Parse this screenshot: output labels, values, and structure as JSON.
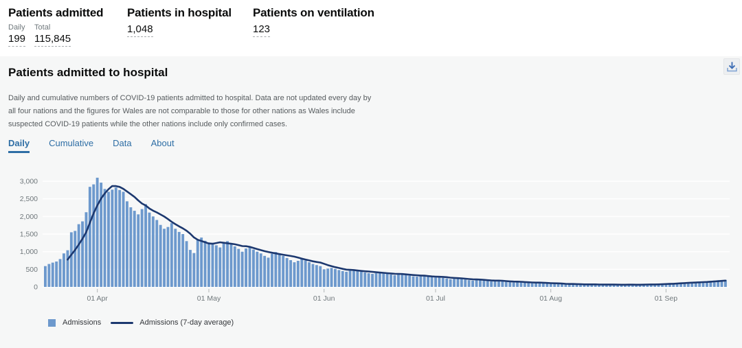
{
  "header": {
    "stats": [
      {
        "title": "Patients admitted",
        "metrics": [
          {
            "label": "Daily",
            "value": "199"
          },
          {
            "label": "Total",
            "value": "115,845"
          }
        ]
      },
      {
        "title": "Patients in hospital",
        "value": "1,048"
      },
      {
        "title": "Patients on ventilation",
        "value": "123"
      }
    ]
  },
  "card": {
    "title": "Patients admitted to hospital",
    "description_lines": [
      "Daily and cumulative numbers of COVID-19 patients admitted to hospital. Data are not updated every day by",
      "all four nations and the figures for Wales are not comparable to those for other nations as Wales include",
      "suspected COVID-19 patients while the other nations include only confirmed cases."
    ],
    "tabs": [
      {
        "label": "Daily",
        "active": true
      },
      {
        "label": "Cumulative",
        "active": false
      },
      {
        "label": "Data",
        "active": false
      },
      {
        "label": "About",
        "active": false
      }
    ]
  },
  "legend": {
    "bar_label": "Admissions",
    "line_label": "Admissions (7-day average)"
  },
  "colors": {
    "bar": "#6d99cd",
    "line": "#1c386f",
    "tab_blue": "#2e6ea5",
    "axis_text": "#6f777b",
    "gridline": "#ffffff",
    "card_bg": "#f6f7f7"
  },
  "chart_data": {
    "type": "bar",
    "title": "Patients admitted to hospital — Daily",
    "xlabel": "",
    "ylabel": "",
    "ylim": [
      0,
      3200
    ],
    "grid": true,
    "legend_position": "bottom-left",
    "y_ticks": [
      {
        "value": 0,
        "label": "0"
      },
      {
        "value": 500,
        "label": "500"
      },
      {
        "value": 1000,
        "label": "1,000"
      },
      {
        "value": 1500,
        "label": "1,500"
      },
      {
        "value": 2000,
        "label": "2,000"
      },
      {
        "value": 2500,
        "label": "2,500"
      },
      {
        "value": 3000,
        "label": "3,000"
      }
    ],
    "x_ticks": [
      {
        "label": "01 Apr",
        "day_index": 14
      },
      {
        "label": "01 May",
        "day_index": 44
      },
      {
        "label": "01 Jun",
        "day_index": 75
      },
      {
        "label": "01 Jul",
        "day_index": 105
      },
      {
        "label": "01 Aug",
        "day_index": 136
      },
      {
        "label": "01 Sep",
        "day_index": 167
      }
    ],
    "series": [
      {
        "name": "Admissions",
        "type": "bar",
        "values": [
          590,
          650,
          690,
          720,
          790,
          950,
          1040,
          1550,
          1590,
          1780,
          1860,
          2120,
          2840,
          2910,
          3100,
          2960,
          2780,
          2700,
          2760,
          2820,
          2750,
          2700,
          2430,
          2260,
          2160,
          2060,
          2210,
          2350,
          2110,
          2000,
          1900,
          1760,
          1650,
          1700,
          1810,
          1650,
          1560,
          1500,
          1300,
          1050,
          960,
          1350,
          1400,
          1310,
          1260,
          1250,
          1180,
          1120,
          1250,
          1300,
          1220,
          1150,
          1080,
          1000,
          1090,
          1130,
          1060,
          1000,
          950,
          880,
          830,
          940,
          990,
          930,
          880,
          820,
          760,
          700,
          740,
          790,
          750,
          700,
          650,
          620,
          590,
          500,
          520,
          540,
          510,
          480,
          450,
          430,
          460,
          480,
          450,
          430,
          410,
          390,
          370,
          390,
          410,
          390,
          370,
          350,
          330,
          350,
          370,
          340,
          320,
          300,
          290,
          300,
          310,
          290,
          280,
          270,
          280,
          260,
          240,
          220,
          230,
          250,
          230,
          210,
          190,
          180,
          195,
          205,
          190,
          170,
          155,
          165,
          180,
          160,
          145,
          135,
          125,
          135,
          145,
          125,
          115,
          105,
          115,
          125,
          105,
          95,
          90,
          85,
          95,
          80,
          70,
          75,
          85,
          75,
          65,
          60,
          70,
          80,
          70,
          60,
          55,
          65,
          75,
          65,
          60,
          55,
          60,
          70,
          65,
          60,
          65,
          75,
          80,
          75,
          70,
          80,
          90,
          100,
          110,
          105,
          115,
          125,
          120,
          130,
          140,
          135,
          145,
          155,
          160,
          170,
          180,
          190,
          195,
          199
        ]
      },
      {
        "name": "Admissions (7-day average)",
        "type": "line",
        "derived_from": "7-day rolling mean of Admissions"
      }
    ]
  }
}
